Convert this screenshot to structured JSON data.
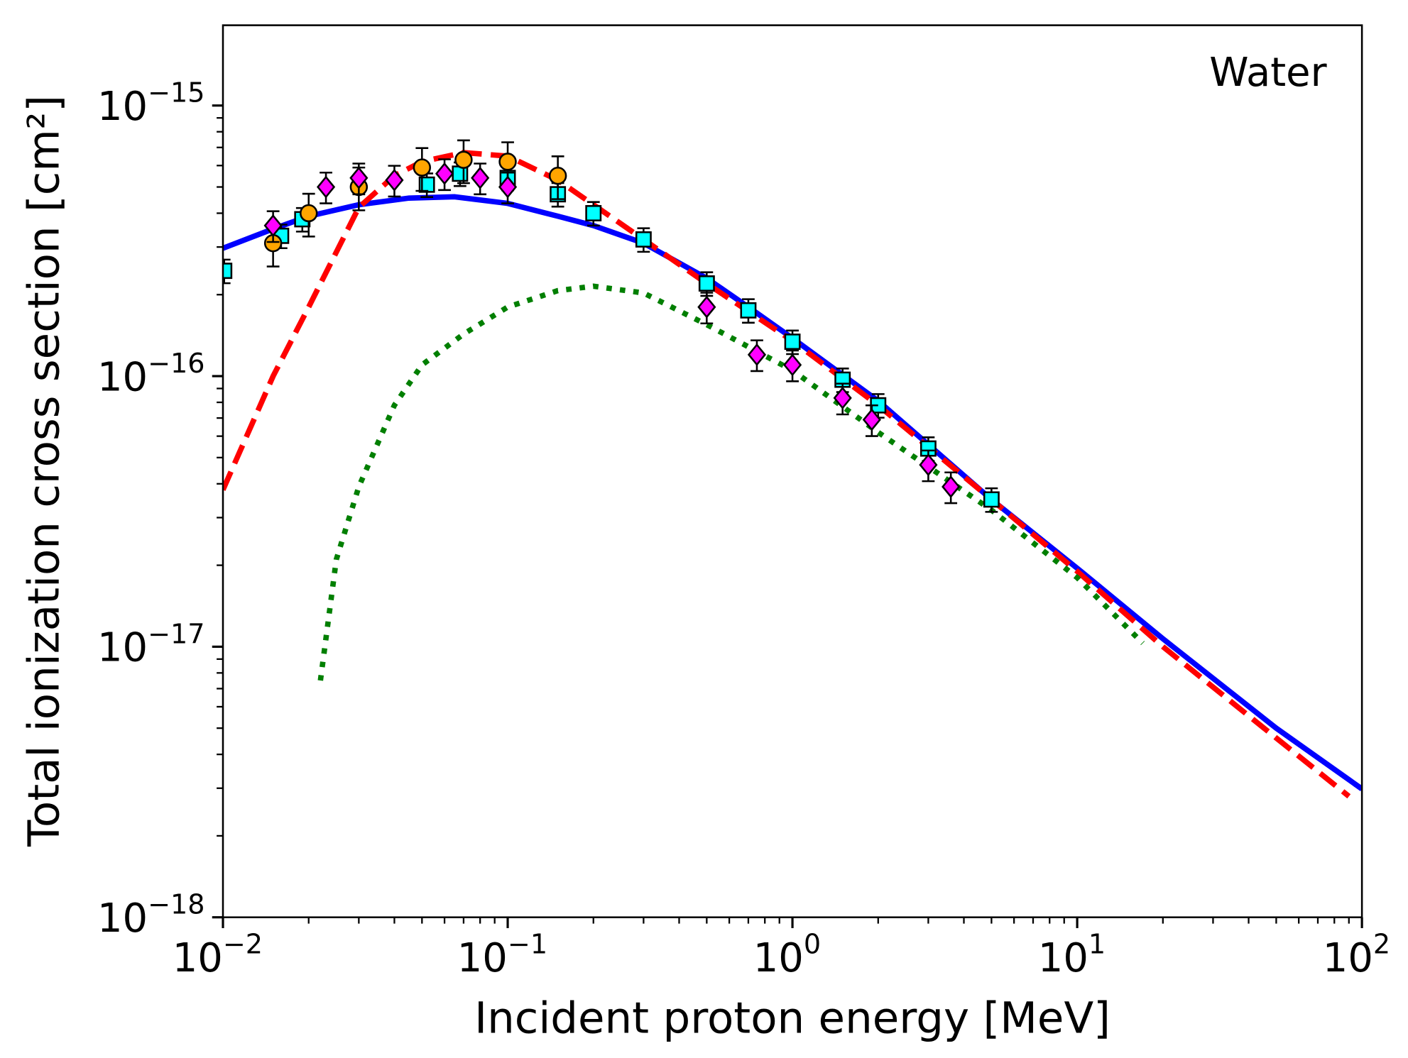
{
  "chart_data": {
    "type": "line",
    "title": "",
    "annotation": "Water",
    "xlabel": "Incident proton energy [MeV]",
    "ylabel": "Total ionization cross section [cm²]",
    "xscale": "log",
    "yscale": "log",
    "xlim": [
      0.01,
      100
    ],
    "ylim": [
      1e-18,
      2e-15
    ],
    "xticks": [
      {
        "base": "10",
        "exp": "−2"
      },
      {
        "base": "10",
        "exp": "−1"
      },
      {
        "base": "10",
        "exp": "0"
      },
      {
        "base": "10",
        "exp": "1"
      },
      {
        "base": "10",
        "exp": "2"
      }
    ],
    "yticks": [
      {
        "base": "10",
        "exp": "−18"
      },
      {
        "base": "10",
        "exp": "−17"
      },
      {
        "base": "10",
        "exp": "−16"
      },
      {
        "base": "10",
        "exp": "−15"
      }
    ],
    "grid": false,
    "lines": [
      {
        "name": "solid",
        "color": "#0000ff",
        "style": "solid",
        "x": [
          0.01,
          0.015,
          0.02,
          0.03,
          0.045,
          0.065,
          0.1,
          0.15,
          0.2,
          0.3,
          0.5,
          0.7,
          1,
          2,
          5,
          10,
          20,
          50,
          100
        ],
        "y": [
          2.97e-16,
          3.5e-16,
          3.9e-16,
          4.3e-16,
          4.55e-16,
          4.6e-16,
          4.35e-16,
          3.9e-16,
          3.6e-16,
          3.1e-16,
          2.3e-16,
          1.8e-16,
          1.38e-16,
          8.1e-17,
          3.5e-17,
          1.95e-17,
          1.07e-17,
          5e-18,
          2.98e-18
        ]
      },
      {
        "name": "dashed",
        "color": "#ff0000",
        "style": "dashed",
        "x": [
          0.01,
          0.015,
          0.02,
          0.03,
          0.04,
          0.05,
          0.07,
          0.1,
          0.15,
          0.2,
          0.3,
          0.5,
          1,
          2,
          5,
          10,
          20,
          50,
          90
        ],
        "y": [
          3.8e-17,
          1e-16,
          1.8e-16,
          4.2e-16,
          5.5e-16,
          6.2e-16,
          6.7e-16,
          6.5e-16,
          5.3e-16,
          4.3e-16,
          3.2e-16,
          2.2e-16,
          1.35e-16,
          7.8e-17,
          3.5e-17,
          1.9e-17,
          1e-17,
          4.6e-18,
          2.8e-18
        ]
      },
      {
        "name": "dotted",
        "color": "#007f00",
        "style": "dotted",
        "x": [
          0.022,
          0.025,
          0.03,
          0.04,
          0.05,
          0.07,
          0.1,
          0.15,
          0.2,
          0.3,
          0.5,
          1,
          2,
          5,
          10,
          17
        ],
        "y": [
          7.5e-18,
          2.1e-17,
          3.9e-17,
          7.8e-17,
          1.1e-16,
          1.43e-16,
          1.8e-16,
          2.07e-16,
          2.15e-16,
          2.03e-16,
          1.55e-16,
          1.05e-16,
          6.2e-17,
          3.2e-17,
          1.8e-17,
          1.03e-17
        ]
      }
    ],
    "markers": [
      {
        "name": "squares",
        "shape": "square",
        "color": "#00ffff",
        "err": 0.1,
        "x": [
          0.0101,
          0.016,
          0.019,
          0.052,
          0.068,
          0.1,
          0.15,
          0.2,
          0.3,
          0.5,
          0.7,
          1.0,
          1.5,
          2.0,
          3,
          5
        ],
        "y": [
          2.45e-16,
          3.3e-16,
          3.8e-16,
          5.1e-16,
          5.6e-16,
          5.4e-16,
          4.7e-16,
          4e-16,
          3.2e-16,
          2.2e-16,
          1.75e-16,
          1.34e-16,
          9.7e-17,
          7.8e-17,
          5.4e-17,
          3.5e-17
        ]
      },
      {
        "name": "circles",
        "shape": "circle",
        "color": "#ffa500",
        "err": 0.18,
        "x": [
          0.015,
          0.02,
          0.03,
          0.05,
          0.07,
          0.1,
          0.15
        ],
        "y": [
          3.1e-16,
          4e-16,
          5e-16,
          5.9e-16,
          6.3e-16,
          6.2e-16,
          5.5e-16
        ]
      },
      {
        "name": "diamonds",
        "shape": "diamond",
        "color": "#ff00ff",
        "err": 0.13,
        "x": [
          0.015,
          0.023,
          0.03,
          0.04,
          0.06,
          0.08,
          0.1,
          0.5,
          0.75,
          1.0,
          1.5,
          1.9,
          3,
          3.6
        ],
        "y": [
          3.6e-16,
          5e-16,
          5.4e-16,
          5.3e-16,
          5.6e-16,
          5.4e-16,
          5e-16,
          1.8e-16,
          1.2e-16,
          1.1e-16,
          8.3e-17,
          6.9e-17,
          4.7e-17,
          3.9e-17
        ]
      }
    ]
  }
}
